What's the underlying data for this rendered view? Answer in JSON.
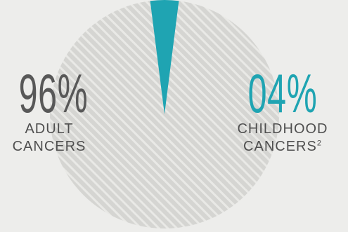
{
  "colors": {
    "background": "#ededeb",
    "pie_base": "#d5d5d2",
    "pie_hatch": "#e9e9e6",
    "accent": "#1fa4b2",
    "text_dark": "#585858"
  },
  "chart_data": {
    "type": "pie",
    "categories": [
      "Adult cancers",
      "Childhood cancers"
    ],
    "values": [
      96,
      4
    ],
    "title": "",
    "labels": [
      {
        "value_text": "96%",
        "line1": "ADULT",
        "line2": "CANCERS",
        "footnote": ""
      },
      {
        "value_text": "04%",
        "line1": "CHILDHOOD",
        "line2": "CANCERS",
        "footnote": "2"
      }
    ]
  }
}
